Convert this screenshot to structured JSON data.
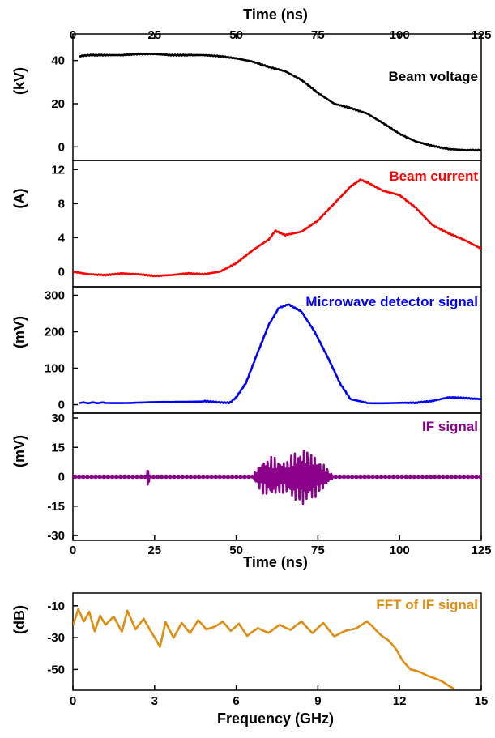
{
  "chart_data": [
    {
      "type": "line",
      "id": "beam-voltage",
      "x_axis_title": "Time (ns)",
      "x_ticks": [
        0,
        25,
        50,
        75,
        100,
        125
      ],
      "xlim": [
        0,
        125
      ],
      "ylabel": "(kV)",
      "yticks": [
        0,
        20,
        40
      ],
      "ylim": [
        -4,
        50
      ],
      "series": [
        {
          "name": "Beam voltage",
          "color": "#000000",
          "x": [
            2,
            5,
            10,
            15,
            20,
            25,
            30,
            35,
            40,
            45,
            50,
            55,
            60,
            65,
            70,
            75,
            80,
            85,
            90,
            95,
            100,
            105,
            110,
            115,
            120,
            125
          ],
          "values": [
            42,
            42.5,
            42.5,
            42.5,
            43,
            43,
            42.5,
            42.5,
            42.5,
            42,
            41,
            39.5,
            37,
            35,
            31,
            25,
            20,
            18,
            15.5,
            11,
            6,
            2.5,
            0.5,
            -1,
            -1.5,
            -1.5
          ]
        }
      ]
    },
    {
      "type": "line",
      "id": "beam-current",
      "ylabel": "(A)",
      "yticks": [
        0,
        4,
        8,
        12
      ],
      "ylim": [
        -1.2,
        12.5
      ],
      "series": [
        {
          "name": "Beam current",
          "color": "#ff0000",
          "x": [
            0,
            5,
            10,
            15,
            20,
            25,
            30,
            35,
            40,
            45,
            50,
            55,
            60,
            62,
            65,
            70,
            75,
            80,
            85,
            88,
            90,
            95,
            100,
            105,
            110,
            115,
            120,
            125
          ],
          "values": [
            0,
            -0.3,
            -0.4,
            -0.2,
            -0.3,
            -0.5,
            -0.4,
            -0.2,
            -0.3,
            0,
            1,
            2.5,
            3.8,
            4.8,
            4.3,
            4.7,
            6,
            8,
            10,
            10.8,
            10.5,
            9.5,
            9,
            7.5,
            5.5,
            4.5,
            3.7,
            2.7
          ]
        }
      ]
    },
    {
      "type": "line",
      "id": "microwave-detector",
      "ylabel": "(mV)",
      "yticks": [
        0,
        100,
        200,
        300
      ],
      "ylim": [
        -10,
        310
      ],
      "series": [
        {
          "name": "Microwave detector signal",
          "color": "#0000ff",
          "x": [
            2,
            10,
            20,
            30,
            40,
            45,
            48,
            50,
            53,
            56,
            60,
            63,
            66,
            70,
            74,
            78,
            82,
            85,
            90,
            100,
            105,
            110,
            115,
            120,
            125
          ],
          "values": [
            5,
            5,
            6,
            6,
            10,
            6,
            5,
            20,
            60,
            130,
            220,
            265,
            275,
            255,
            200,
            130,
            55,
            15,
            5,
            5,
            5,
            10,
            20,
            18,
            15
          ]
        }
      ]
    },
    {
      "type": "line",
      "id": "if-signal",
      "ylabel": "(mV)",
      "yticks": [
        -30,
        -15,
        0,
        15,
        30
      ],
      "ylim": [
        -30,
        30
      ],
      "xlabel": "Time (ns)",
      "x_ticks": [
        0,
        25,
        50,
        75,
        100,
        125
      ],
      "series": [
        {
          "name": "IF signal",
          "color": "#8b008b",
          "envelope": {
            "t": [
              55,
              57,
              60,
              62,
              65,
              67,
              70,
              72,
              75,
              78,
              80
            ],
            "amp": [
              0,
              7,
              11,
              10,
              8,
              12,
              15,
              14,
              10,
              4,
              0
            ]
          },
          "spike_at": 23,
          "spike_amp": 4
        }
      ]
    },
    {
      "type": "line",
      "id": "fft",
      "ylabel": "(dB)",
      "yticks": [
        -50,
        -30,
        -10
      ],
      "ylim": [
        -60,
        -5
      ],
      "xlabel": "Frequency (GHz)",
      "x_ticks": [
        0,
        3,
        6,
        9,
        12,
        15
      ],
      "xlim": [
        0,
        15
      ],
      "series": [
        {
          "name": "FFT of IF signal",
          "color": "#e08c10",
          "x": [
            0,
            0.2,
            0.4,
            0.6,
            0.8,
            1.0,
            1.2,
            1.5,
            1.8,
            2.0,
            2.3,
            2.6,
            2.9,
            3.2,
            3.4,
            3.7,
            4.0,
            4.3,
            4.6,
            4.9,
            5.2,
            5.5,
            5.8,
            6.1,
            6.4,
            6.8,
            7.2,
            7.6,
            8.0,
            8.4,
            8.8,
            9.2,
            9.6,
            10.0,
            10.4,
            10.8,
            11.0,
            11.3,
            11.6,
            11.9,
            12.1,
            12.4,
            12.8,
            13.2,
            13.6,
            14.0
          ],
          "values": [
            -22,
            -12,
            -20,
            -14,
            -26,
            -16,
            -22,
            -17,
            -26,
            -13,
            -25,
            -18,
            -27,
            -36,
            -20,
            -30,
            -21,
            -27,
            -19,
            -25,
            -23,
            -20,
            -26,
            -21,
            -29,
            -24,
            -27,
            -22,
            -25,
            -20,
            -27,
            -21,
            -29,
            -26,
            -24,
            -20,
            -23,
            -28,
            -32,
            -38,
            -44,
            -50,
            -52,
            -55,
            -58,
            -62
          ]
        }
      ]
    }
  ]
}
